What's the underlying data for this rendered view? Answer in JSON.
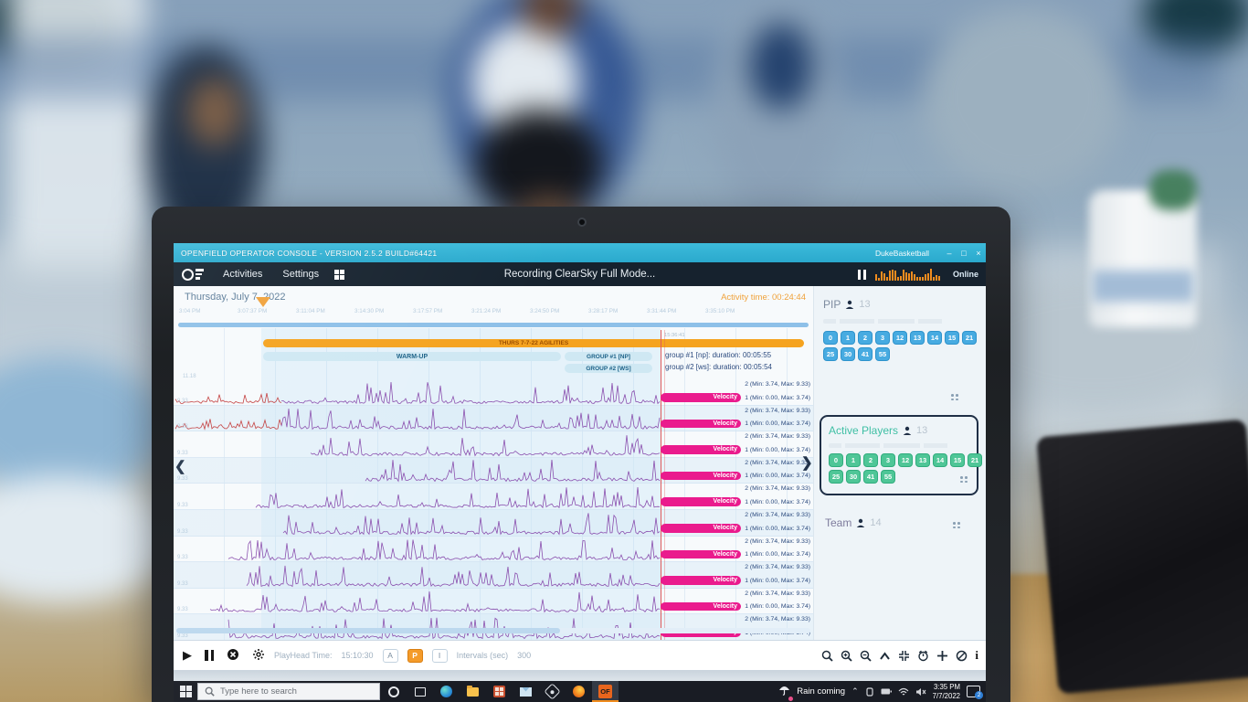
{
  "window": {
    "title": "OPENFIELD OPERATOR CONSOLE - VERSION 2.5.2 BUILD#64421",
    "account": "DukeBasketball",
    "controls": {
      "min": "–",
      "max": "□",
      "close": "×"
    }
  },
  "navbar": {
    "activities": "Activities",
    "settings": "Settings",
    "status": "Recording ClearSky Full Mode...",
    "online": "Online"
  },
  "chart": {
    "date": "Thursday, July 7, 2022",
    "activity_time": "Activity time: 00:24:44",
    "ruler_ticks": [
      "3:04 PM",
      "3:07:37 PM",
      "3:11:04 PM",
      "3:14:30 PM",
      "3:17:57 PM",
      "3:21:24 PM",
      "3:24:50 PM",
      "3:28:17 PM",
      "3:31:44 PM",
      "3:35:10 PM"
    ],
    "session": {
      "title": "THURS 7-7-22 AGILITIES",
      "warmup": "WARM-UP",
      "group1": "GROUP #1 [NP]",
      "group2": "GROUP #2 [WS]"
    },
    "cursor_time": "15:36:41",
    "durations": [
      "group #1 [np]:  duration:  00:05:55",
      "group #2 [ws]:  duration:  00:05:54"
    ],
    "axis_top": "11.18",
    "rows": [
      {
        "velocity": "Velocity",
        "line1": "2 (Min: 3.74, Max: 9.33)",
        "line2": "1 (Min: 0.00, Max: 3.74)",
        "axis": "9.33"
      },
      {
        "velocity": "Velocity",
        "line1": "2 (Min: 3.74, Max: 9.33)",
        "line2": "1 (Min: 0.00, Max: 3.74)",
        "axis": "9.33"
      },
      {
        "velocity": "Velocity",
        "line1": "2 (Min: 3.74, Max: 9.33)",
        "line2": "1 (Min: 0.00, Max: 3.74)",
        "axis": "9.33"
      },
      {
        "velocity": "Velocity",
        "line1": "2 (Min: 3.74, Max: 9.33)",
        "line2": "1 (Min: 0.00, Max: 3.74)",
        "axis": "9.33"
      },
      {
        "velocity": "Velocity",
        "line1": "2 (Min: 3.74, Max: 9.33)",
        "line2": "1 (Min: 0.00, Max: 3.74)",
        "axis": "9.33"
      },
      {
        "velocity": "Velocity",
        "line1": "2 (Min: 3.74, Max: 9.33)",
        "line2": "1 (Min: 0.00, Max: 3.74)",
        "axis": "9.33"
      },
      {
        "velocity": "Velocity",
        "line1": "2 (Min: 3.74, Max: 9.33)",
        "line2": "1 (Min: 0.00, Max: 3.74)",
        "axis": "9.33"
      },
      {
        "velocity": "Velocity",
        "line1": "2 (Min: 3.74, Max: 9.33)",
        "line2": "1 (Min: 0.00, Max: 3.74)",
        "axis": "9.33"
      },
      {
        "velocity": "Velocity",
        "line1": "2 (Min: 3.74, Max: 9.33)",
        "line2": "1 (Min: 0.00, Max: 3.74)",
        "axis": "9.33"
      },
      {
        "velocity": "Velocity",
        "line1": "2 (Min: 3.74, Max: 9.33)",
        "line2": "1 (Min: 0.00, Max: 3.74)",
        "axis": "9.33"
      }
    ]
  },
  "panel": {
    "pip": {
      "title": "PIP",
      "count": "13",
      "chips": [
        "0",
        "1",
        "2",
        "3",
        "12",
        "13",
        "14",
        "15",
        "21",
        "25",
        "30",
        "41",
        "55"
      ]
    },
    "active": {
      "title": "Active Players",
      "count": "13",
      "chips": [
        "0",
        "1",
        "2",
        "3",
        "12",
        "13",
        "14",
        "15",
        "21",
        "25",
        "30",
        "41",
        "55"
      ]
    },
    "team": {
      "title": "Team",
      "count": "14"
    }
  },
  "toolbar": {
    "playhead_label": "PlayHead Time:",
    "playhead_value": "15:10:30",
    "btn_a": "A",
    "btn_p": "P",
    "btn_i": "I",
    "intervals_label": "Intervals (sec)",
    "intervals_value": "300"
  },
  "taskbar": {
    "search_placeholder": "Type here to search",
    "weather": "Rain coming",
    "time": "3:35 PM",
    "date": "7/7/2022",
    "badge": "2",
    "of_label": "OF"
  }
}
